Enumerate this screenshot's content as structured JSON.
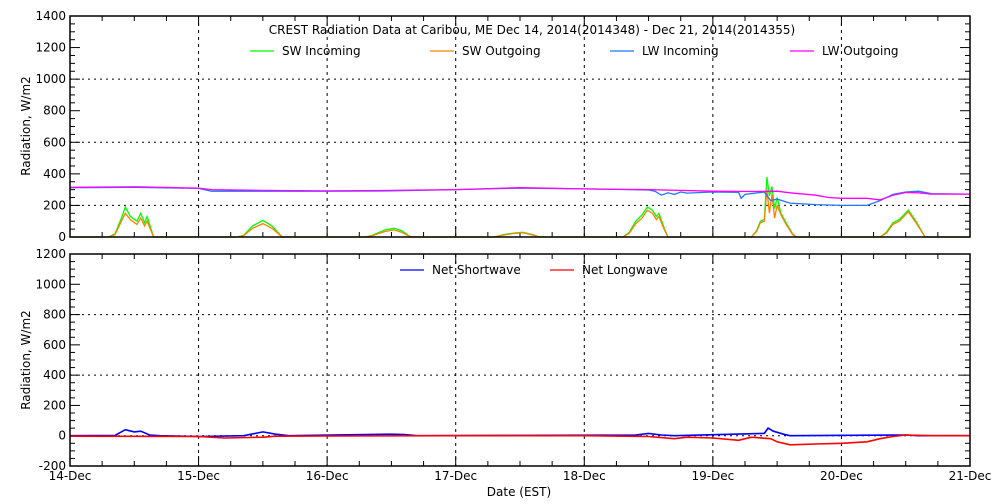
{
  "chart_data": [
    {
      "type": "line",
      "title": "CREST Radiation Data at Caribou, ME   Dec 14, 2014(2014348) - Dec 21, 2014(2014355)",
      "ylabel": "Radiation, W/m2",
      "xlabel": "",
      "ylim": [
        0,
        1400
      ],
      "xlim": [
        0,
        7
      ],
      "yticks": [
        "0",
        "200",
        "400",
        "600",
        "800",
        "1000",
        "1200",
        "1400"
      ],
      "grid": true,
      "legend_position": "top",
      "series": [
        {
          "name": "SW Incoming",
          "color": "#00ff00",
          "points": [
            [
              0,
              0
            ],
            [
              0.3,
              0
            ],
            [
              0.35,
              20
            ],
            [
              0.4,
              120
            ],
            [
              0.43,
              190
            ],
            [
              0.47,
              130
            ],
            [
              0.52,
              100
            ],
            [
              0.55,
              150
            ],
            [
              0.58,
              90
            ],
            [
              0.6,
              130
            ],
            [
              0.65,
              0
            ],
            [
              1.3,
              0
            ],
            [
              1.35,
              10
            ],
            [
              1.42,
              70
            ],
            [
              1.5,
              105
            ],
            [
              1.57,
              70
            ],
            [
              1.65,
              0
            ],
            [
              2.3,
              0
            ],
            [
              2.35,
              10
            ],
            [
              2.45,
              45
            ],
            [
              2.52,
              55
            ],
            [
              2.58,
              40
            ],
            [
              2.65,
              0
            ],
            [
              3.3,
              0
            ],
            [
              3.37,
              15
            ],
            [
              3.45,
              25
            ],
            [
              3.52,
              30
            ],
            [
              3.6,
              15
            ],
            [
              3.65,
              0
            ],
            [
              4.3,
              0
            ],
            [
              4.35,
              30
            ],
            [
              4.4,
              100
            ],
            [
              4.45,
              140
            ],
            [
              4.49,
              190
            ],
            [
              4.53,
              170
            ],
            [
              4.56,
              130
            ],
            [
              4.58,
              150
            ],
            [
              4.62,
              60
            ],
            [
              4.65,
              0
            ],
            [
              5.3,
              0
            ],
            [
              5.34,
              40
            ],
            [
              5.37,
              100
            ],
            [
              5.4,
              110
            ],
            [
              5.42,
              380
            ],
            [
              5.44,
              260
            ],
            [
              5.46,
              320
            ],
            [
              5.48,
              180
            ],
            [
              5.5,
              250
            ],
            [
              5.53,
              150
            ],
            [
              5.57,
              90
            ],
            [
              5.62,
              20
            ],
            [
              5.65,
              0
            ],
            [
              6.3,
              0
            ],
            [
              6.35,
              30
            ],
            [
              6.4,
              90
            ],
            [
              6.45,
              110
            ],
            [
              6.52,
              170
            ],
            [
              6.58,
              100
            ],
            [
              6.65,
              0
            ],
            [
              7,
              0
            ]
          ]
        },
        {
          "name": "SW Outgoing",
          "color": "#ff8000",
          "points": [
            [
              0,
              0
            ],
            [
              0.3,
              0
            ],
            [
              0.35,
              15
            ],
            [
              0.4,
              100
            ],
            [
              0.43,
              150
            ],
            [
              0.47,
              110
            ],
            [
              0.52,
              80
            ],
            [
              0.55,
              120
            ],
            [
              0.58,
              70
            ],
            [
              0.6,
              100
            ],
            [
              0.65,
              0
            ],
            [
              1.3,
              0
            ],
            [
              1.35,
              8
            ],
            [
              1.42,
              55
            ],
            [
              1.5,
              85
            ],
            [
              1.57,
              55
            ],
            [
              1.65,
              0
            ],
            [
              2.3,
              0
            ],
            [
              2.35,
              8
            ],
            [
              2.45,
              35
            ],
            [
              2.52,
              45
            ],
            [
              2.58,
              30
            ],
            [
              2.65,
              0
            ],
            [
              3.3,
              0
            ],
            [
              3.37,
              12
            ],
            [
              3.45,
              22
            ],
            [
              3.52,
              28
            ],
            [
              3.6,
              12
            ],
            [
              3.65,
              0
            ],
            [
              4.3,
              0
            ],
            [
              4.35,
              25
            ],
            [
              4.4,
              85
            ],
            [
              4.45,
              120
            ],
            [
              4.49,
              170
            ],
            [
              4.53,
              150
            ],
            [
              4.56,
              110
            ],
            [
              4.58,
              130
            ],
            [
              4.62,
              50
            ],
            [
              4.65,
              0
            ],
            [
              5.3,
              0
            ],
            [
              5.34,
              35
            ],
            [
              5.37,
              90
            ],
            [
              5.4,
              100
            ],
            [
              5.42,
              300
            ],
            [
              5.44,
              150
            ],
            [
              5.46,
              270
            ],
            [
              5.48,
              120
            ],
            [
              5.5,
              200
            ],
            [
              5.53,
              140
            ],
            [
              5.57,
              80
            ],
            [
              5.62,
              15
            ],
            [
              5.65,
              0
            ],
            [
              6.3,
              0
            ],
            [
              6.35,
              25
            ],
            [
              6.4,
              80
            ],
            [
              6.45,
              100
            ],
            [
              6.52,
              160
            ],
            [
              6.58,
              90
            ],
            [
              6.65,
              0
            ],
            [
              7,
              0
            ]
          ]
        },
        {
          "name": "LW Incoming",
          "color": "#1e78ff",
          "points": [
            [
              0,
              312
            ],
            [
              0.5,
              315
            ],
            [
              1,
              308
            ],
            [
              1.1,
              290
            ],
            [
              2,
              290
            ],
            [
              2.5,
              292
            ],
            [
              3,
              300
            ],
            [
              3.5,
              310
            ],
            [
              4,
              305
            ],
            [
              4.5,
              298
            ],
            [
              4.55,
              290
            ],
            [
              4.6,
              265
            ],
            [
              4.65,
              280
            ],
            [
              4.7,
              270
            ],
            [
              4.75,
              285
            ],
            [
              4.8,
              278
            ],
            [
              5,
              285
            ],
            [
              5.2,
              283
            ],
            [
              5.22,
              245
            ],
            [
              5.25,
              270
            ],
            [
              5.4,
              285
            ],
            [
              5.45,
              230
            ],
            [
              5.5,
              240
            ],
            [
              5.6,
              215
            ],
            [
              5.8,
              205
            ],
            [
              6.0,
              200
            ],
            [
              6.2,
              200
            ],
            [
              6.3,
              230
            ],
            [
              6.4,
              270
            ],
            [
              6.5,
              285
            ],
            [
              6.6,
              290
            ],
            [
              6.7,
              275
            ],
            [
              7,
              272
            ]
          ]
        },
        {
          "name": "LW Outgoing",
          "color": "#ff00ff",
          "points": [
            [
              0,
              315
            ],
            [
              0.5,
              318
            ],
            [
              1,
              310
            ],
            [
              1.1,
              300
            ],
            [
              1.5,
              295
            ],
            [
              2,
              292
            ],
            [
              2.5,
              295
            ],
            [
              3,
              300
            ],
            [
              3.5,
              312
            ],
            [
              4,
              305
            ],
            [
              4.5,
              300
            ],
            [
              5,
              290
            ],
            [
              5.3,
              288
            ],
            [
              5.5,
              290
            ],
            [
              5.6,
              280
            ],
            [
              5.8,
              265
            ],
            [
              5.9,
              250
            ],
            [
              6.0,
              245
            ],
            [
              6.2,
              245
            ],
            [
              6.3,
              235
            ],
            [
              6.4,
              265
            ],
            [
              6.5,
              282
            ],
            [
              6.6,
              280
            ],
            [
              6.7,
              272
            ],
            [
              7,
              272
            ]
          ]
        }
      ]
    },
    {
      "type": "line",
      "title": "",
      "ylabel": "Radiation, W/m2",
      "xlabel": "Date (EST)",
      "ylim": [
        -200,
        1200
      ],
      "xlim": [
        0,
        7
      ],
      "yticks": [
        "-200",
        "0",
        "200",
        "400",
        "600",
        "800",
        "1000",
        "1200"
      ],
      "xticks": [
        "14-Dec",
        "15-Dec",
        "16-Dec",
        "17-Dec",
        "18-Dec",
        "19-Dec",
        "20-Dec",
        "21-Dec"
      ],
      "grid": true,
      "legend_position": "top",
      "series": [
        {
          "name": "Net Shortwave",
          "color": "#0000ff",
          "points": [
            [
              0,
              0
            ],
            [
              0.35,
              2
            ],
            [
              0.43,
              40
            ],
            [
              0.5,
              25
            ],
            [
              0.55,
              30
            ],
            [
              0.62,
              5
            ],
            [
              0.7,
              0
            ],
            [
              1,
              -5
            ],
            [
              1.35,
              0
            ],
            [
              1.5,
              25
            ],
            [
              1.6,
              10
            ],
            [
              1.7,
              0
            ],
            [
              2.5,
              10
            ],
            [
              2.6,
              8
            ],
            [
              2.7,
              0
            ],
            [
              3.5,
              2
            ],
            [
              4.4,
              5
            ],
            [
              4.5,
              15
            ],
            [
              4.6,
              5
            ],
            [
              4.7,
              0
            ],
            [
              5.4,
              15
            ],
            [
              5.43,
              50
            ],
            [
              5.47,
              30
            ],
            [
              5.55,
              10
            ],
            [
              5.6,
              0
            ],
            [
              6.5,
              5
            ],
            [
              6.6,
              0
            ],
            [
              7,
              0
            ]
          ]
        },
        {
          "name": "Net Longwave",
          "color": "#ff0000",
          "points": [
            [
              0,
              -3
            ],
            [
              1,
              -5
            ],
            [
              1.2,
              -15
            ],
            [
              1.5,
              -10
            ],
            [
              1.6,
              -3
            ],
            [
              2,
              -2
            ],
            [
              3,
              0
            ],
            [
              4,
              0
            ],
            [
              4.5,
              -5
            ],
            [
              4.7,
              -20
            ],
            [
              4.8,
              -10
            ],
            [
              5,
              -15
            ],
            [
              5.2,
              -30
            ],
            [
              5.3,
              -10
            ],
            [
              5.45,
              -20
            ],
            [
              5.5,
              -40
            ],
            [
              5.6,
              -60
            ],
            [
              5.8,
              -55
            ],
            [
              6.0,
              -50
            ],
            [
              6.2,
              -40
            ],
            [
              6.3,
              -20
            ],
            [
              6.4,
              -5
            ],
            [
              6.5,
              5
            ],
            [
              6.7,
              0
            ],
            [
              7,
              0
            ]
          ]
        }
      ]
    }
  ]
}
